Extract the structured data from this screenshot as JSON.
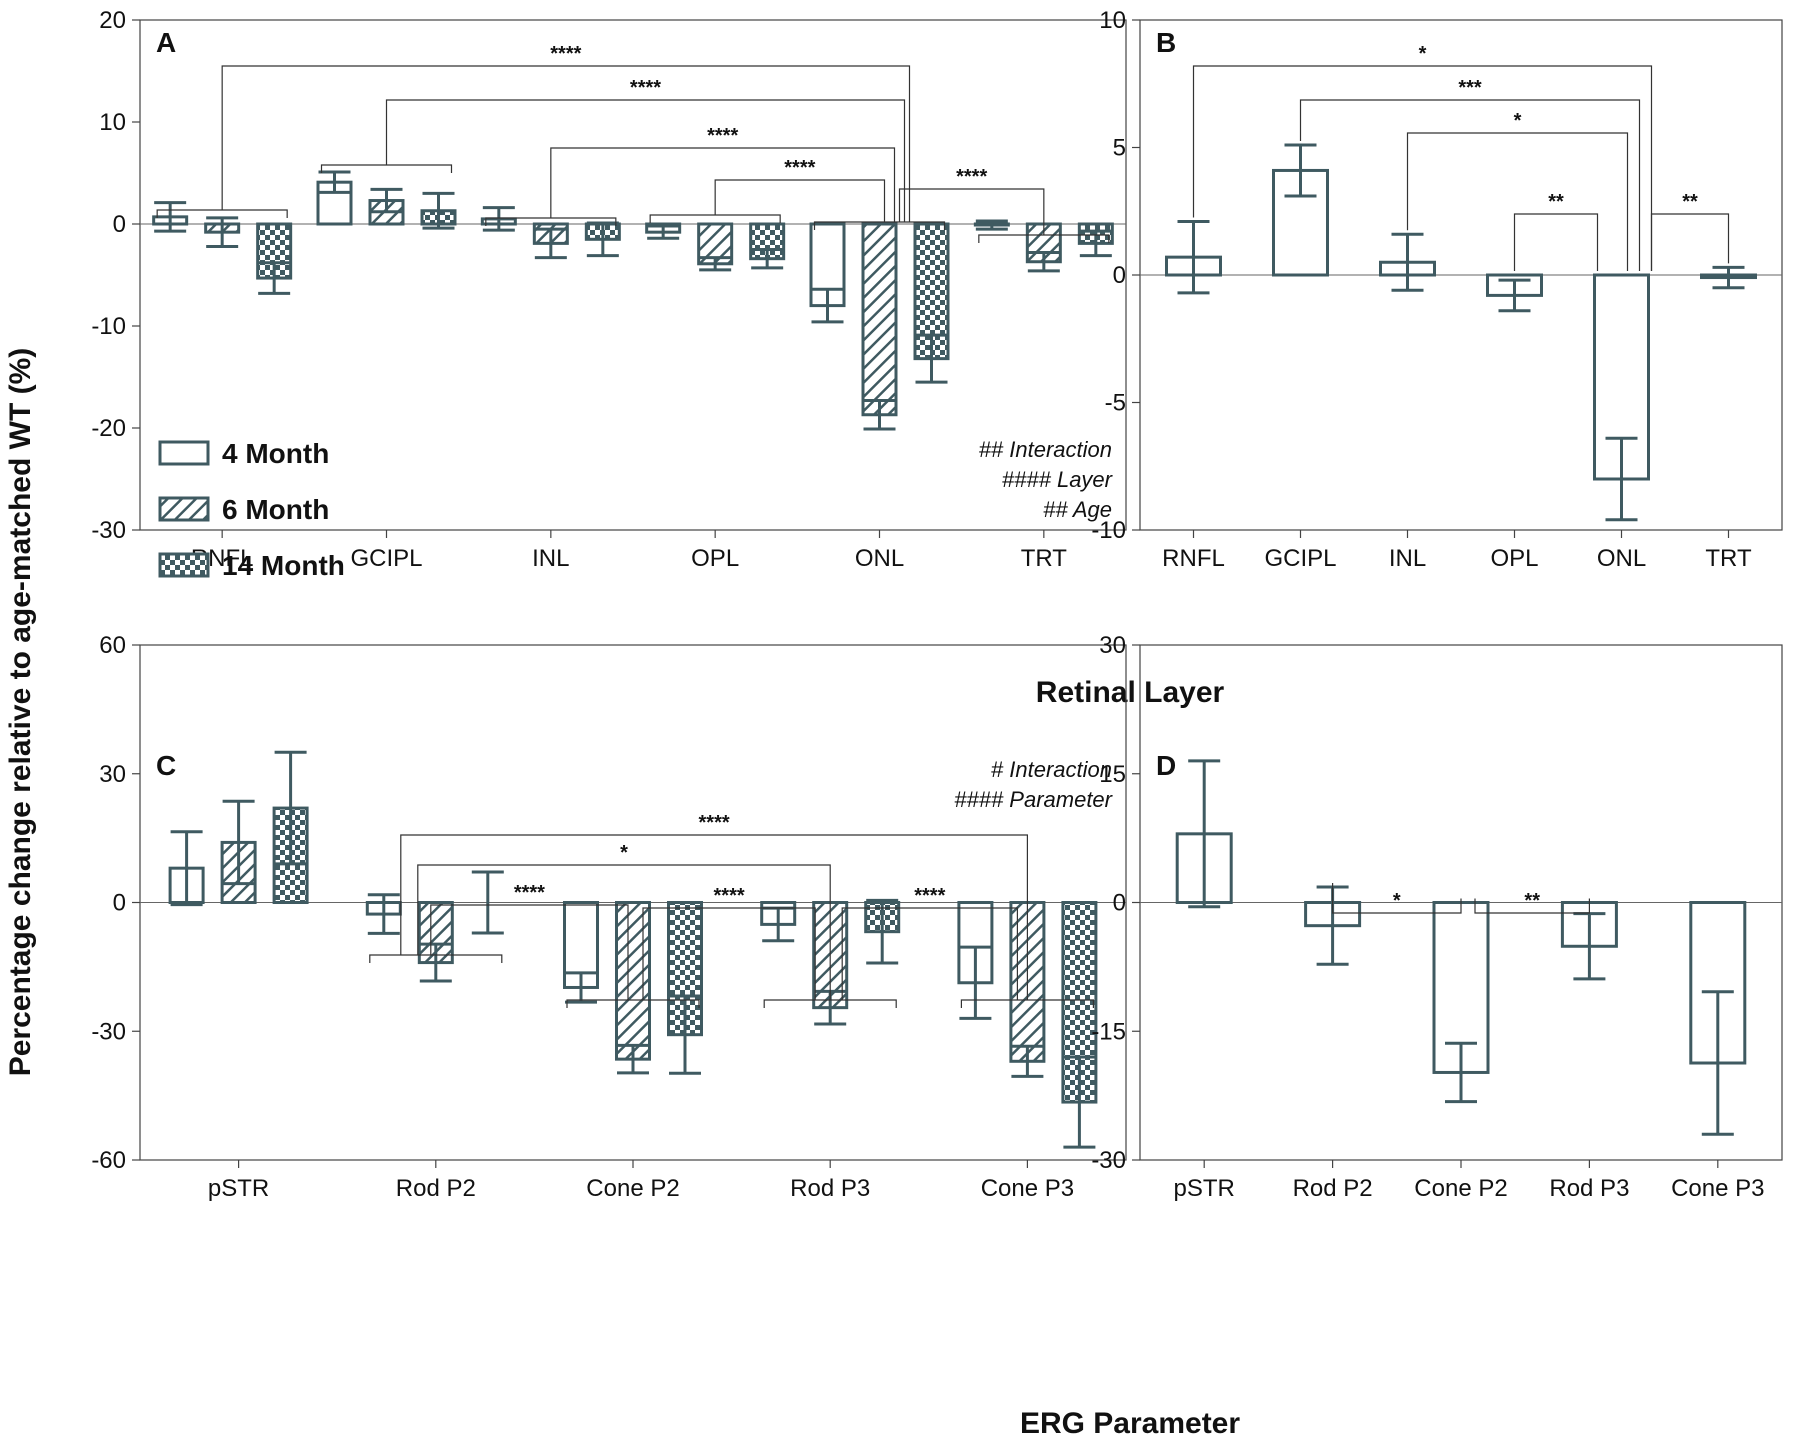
{
  "figure": {
    "y_axis_title": "Percentage change relative to age-matched WT (%)",
    "x_title_top": "Retinal Layer",
    "x_title_bottom": "ERG Parameter",
    "colors": {
      "bar": "#3f5a61",
      "bracket": "#333333",
      "axis": "#444444"
    }
  },
  "legend": {
    "items": [
      {
        "label": "4 Month",
        "pattern": "open"
      },
      {
        "label": "6 Month",
        "pattern": "hatch"
      },
      {
        "label": "14 Month",
        "pattern": "check"
      }
    ]
  },
  "chart_data": [
    {
      "panel": "A",
      "type": "bar",
      "categories": [
        "RNFL",
        "GCIPL",
        "INL",
        "OPL",
        "ONL",
        "TRT"
      ],
      "ylim": [
        -30,
        20
      ],
      "yticks": [
        20,
        10,
        0,
        -10,
        -20,
        -30
      ],
      "series": [
        {
          "name": "4 Month",
          "pattern": "open",
          "values": [
            0.7,
            4.1,
            0.5,
            -0.8,
            -8.0,
            -0.1
          ],
          "err": [
            1.4,
            1.0,
            1.1,
            0.6,
            1.6,
            0.4
          ]
        },
        {
          "name": "6 Month",
          "pattern": "hatch",
          "values": [
            -0.8,
            2.3,
            -1.9,
            -3.9,
            -18.7,
            -3.7
          ],
          "err": [
            1.4,
            1.1,
            1.4,
            0.6,
            1.4,
            0.9
          ]
        },
        {
          "name": "14 Month",
          "pattern": "check",
          "values": [
            -5.3,
            1.3,
            -1.5,
            -3.4,
            -13.2,
            -1.9
          ],
          "err": [
            1.5,
            1.7,
            1.6,
            0.9,
            2.3,
            1.2
          ]
        }
      ],
      "annotations": [
        "## Interaction",
        "#### Layer",
        "## Age"
      ],
      "comparisons": [
        {
          "from": "RNFL",
          "to": "ONL",
          "label": "****"
        },
        {
          "from": "GCIPL",
          "to": "ONL",
          "label": "****"
        },
        {
          "from": "INL",
          "to": "ONL",
          "label": "****"
        },
        {
          "from": "OPL",
          "to": "ONL",
          "label": "****"
        },
        {
          "from": "ONL",
          "to": "TRT",
          "label": "****"
        }
      ]
    },
    {
      "panel": "B",
      "type": "bar",
      "categories": [
        "RNFL",
        "GCIPL",
        "INL",
        "OPL",
        "ONL",
        "TRT"
      ],
      "ylim": [
        -10,
        10
      ],
      "yticks": [
        10,
        5,
        0,
        -5,
        -10
      ],
      "series": [
        {
          "name": "4 Month",
          "pattern": "open",
          "values": [
            0.7,
            4.1,
            0.5,
            -0.8,
            -8.0,
            -0.1
          ],
          "err": [
            1.4,
            1.0,
            1.1,
            0.6,
            1.6,
            0.4
          ]
        }
      ],
      "comparisons": [
        {
          "from": "RNFL",
          "to": "ONL",
          "label": "*"
        },
        {
          "from": "GCIPL",
          "to": "ONL",
          "label": "***"
        },
        {
          "from": "INL",
          "to": "ONL",
          "label": "*"
        },
        {
          "from": "OPL",
          "to": "ONL",
          "label": "**"
        },
        {
          "from": "ONL",
          "to": "TRT",
          "label": "**"
        }
      ]
    },
    {
      "panel": "C",
      "type": "bar",
      "categories": [
        "pSTR",
        "Rod P2",
        "Cone P2",
        "Rod P3",
        "Cone P3"
      ],
      "ylim": [
        -60,
        60
      ],
      "yticks": [
        60,
        30,
        0,
        -30,
        -60
      ],
      "series": [
        {
          "name": "4 Month",
          "pattern": "open",
          "values": [
            8,
            -2.7,
            -19.8,
            -5.1,
            -18.7
          ],
          "err": [
            8.5,
            4.5,
            3.4,
            3.8,
            8.3
          ]
        },
        {
          "name": "6 Month",
          "pattern": "hatch",
          "values": [
            14,
            -14.0,
            -36.5,
            -24.5,
            -37.0
          ],
          "err": [
            9.6,
            4.3,
            3.2,
            3.8,
            3.5
          ]
        },
        {
          "name": "14 Month",
          "pattern": "check",
          "values": [
            22,
            0,
            -30.8,
            -6.8,
            -46.5
          ],
          "err": [
            13.0,
            7.1,
            9.0,
            7.3,
            10.5
          ]
        }
      ],
      "annotations": [
        "# Interaction",
        "#### Parameter"
      ],
      "comparisons": [
        {
          "from": "Rod P2",
          "to": "Cone P3",
          "label": "****"
        },
        {
          "from": "Rod P2",
          "to": "Rod P3",
          "label": "*"
        },
        {
          "from": "Rod P2",
          "to": "Cone P2",
          "label": "****"
        },
        {
          "from": "Cone P2",
          "to": "Rod P3",
          "label": "****"
        },
        {
          "from": "Rod P3",
          "to": "Cone P3",
          "label": "****"
        }
      ]
    },
    {
      "panel": "D",
      "type": "bar",
      "categories": [
        "pSTR",
        "Rod P2",
        "Cone P2",
        "Rod P3",
        "Cone P3"
      ],
      "ylim": [
        -30,
        30
      ],
      "yticks": [
        30,
        15,
        0,
        -15,
        -30
      ],
      "series": [
        {
          "name": "4 Month",
          "pattern": "open",
          "values": [
            8,
            -2.7,
            -19.8,
            -5.1,
            -18.7
          ],
          "err": [
            8.5,
            4.5,
            3.4,
            3.8,
            8.3
          ]
        }
      ],
      "comparisons": [
        {
          "from": "Rod P2",
          "to": "Cone P2",
          "label": "*"
        },
        {
          "from": "Cone P2",
          "to": "Rod P3",
          "label": "**"
        }
      ]
    }
  ]
}
